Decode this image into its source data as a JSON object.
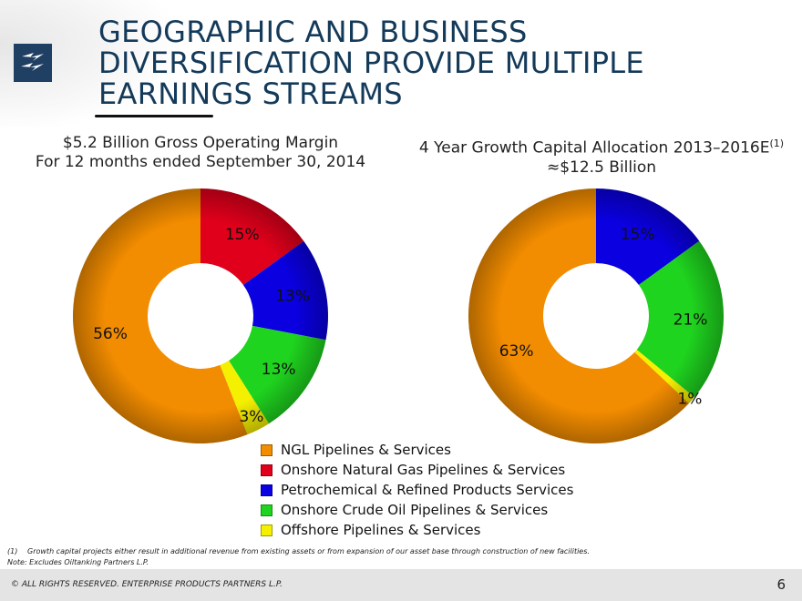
{
  "header": {
    "title": "GEOGRAPHIC AND BUSINESS\nDIVERSIFICATION PROVIDE MULTIPLE\nEARNINGS STREAMS"
  },
  "legend": {
    "items": [
      {
        "label": "NGL Pipelines & Services",
        "color": "#f28c00"
      },
      {
        "label": "Onshore Natural Gas Pipelines & Services",
        "color": "#e0001b"
      },
      {
        "label": "Petrochemical & Refined Products Services",
        "color": "#0a00e0"
      },
      {
        "label": "Onshore Crude Oil Pipelines & Services",
        "color": "#1fd41f"
      },
      {
        "label": "Offshore Pipelines & Services",
        "color": "#f5f000"
      }
    ]
  },
  "chart_data": [
    {
      "type": "pie",
      "title_line1": "$5.2 Billion Gross Operating Margin",
      "title_line2": "For 12 months ended September 30, 2014",
      "slices": [
        {
          "category": "Onshore Natural Gas Pipelines & Services",
          "value": 15,
          "label": "15%",
          "color": "#e0001b"
        },
        {
          "category": "Petrochemical & Refined Products Services",
          "value": 13,
          "label": "13%",
          "color": "#0a00e0"
        },
        {
          "category": "Onshore Crude Oil Pipelines & Services",
          "value": 13,
          "label": "13%",
          "color": "#1fd41f"
        },
        {
          "category": "Offshore Pipelines & Services",
          "value": 3,
          "label": "3%",
          "color": "#f5f000"
        },
        {
          "category": "NGL Pipelines & Services",
          "value": 56,
          "label": "56%",
          "color": "#f28c00"
        }
      ]
    },
    {
      "type": "pie",
      "title_line1": "4 Year Growth Capital Allocation 2013–2016E",
      "title_sup": "(1)",
      "title_line2": "≈$12.5 Billion",
      "slices": [
        {
          "category": "Petrochemical & Refined Products Services",
          "value": 15,
          "label": "15%",
          "color": "#0a00e0"
        },
        {
          "category": "Onshore Crude Oil Pipelines & Services",
          "value": 21,
          "label": "21%",
          "color": "#1fd41f"
        },
        {
          "category": "Offshore Pipelines & Services",
          "value": 1,
          "label": "1%",
          "color": "#f5f000"
        },
        {
          "category": "NGL Pipelines & Services",
          "value": 63,
          "label": "63%",
          "color": "#f28c00"
        }
      ]
    }
  ],
  "footnotes": {
    "note1_number": "(1)",
    "note1_text": "Growth capital projects either result in additional revenue from existing assets or from expansion of our asset base through construction of new facilities.",
    "note2": "Note:  Excludes Oiltanking Partners L.P."
  },
  "footer": {
    "copyright": "© ALL RIGHTS RESERVED. ENTERPRISE PRODUCTS PARTNERS L.P.",
    "page_number": "6"
  }
}
